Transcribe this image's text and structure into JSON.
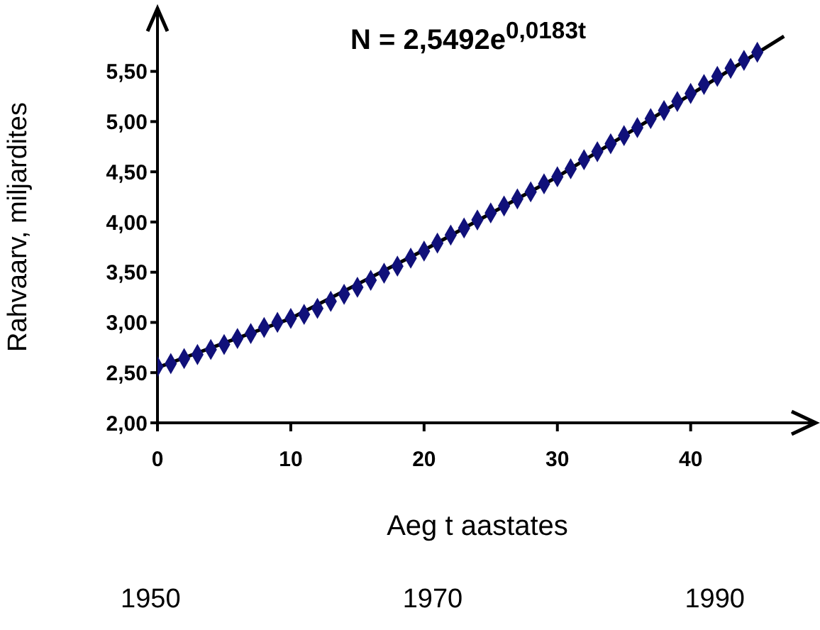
{
  "chart_data": {
    "type": "scatter",
    "title": "N = 2,5492e$^{0,0183t}$",
    "xlabel": "Aeg t aastates",
    "ylabel": "Rahvaarv, miljardites",
    "annotations": [
      "1950",
      "1970",
      "1990"
    ],
    "x": [
      0,
      1,
      2,
      3,
      4,
      5,
      6,
      7,
      8,
      9,
      10,
      11,
      12,
      13,
      14,
      15,
      16,
      17,
      18,
      19,
      20,
      21,
      22,
      23,
      24,
      25,
      26,
      27,
      28,
      29,
      30,
      31,
      32,
      33,
      34,
      35,
      36,
      37,
      38,
      39,
      40,
      41,
      42,
      43,
      44,
      45
    ],
    "series": [
      {
        "color": "#10107a",
        "marker": "diamond",
        "values": [
          2.56,
          2.59,
          2.64,
          2.68,
          2.73,
          2.78,
          2.84,
          2.89,
          2.95,
          3.0,
          3.04,
          3.08,
          3.14,
          3.21,
          3.28,
          3.35,
          3.42,
          3.49,
          3.56,
          3.64,
          3.71,
          3.79,
          3.87,
          3.94,
          4.02,
          4.09,
          4.16,
          4.23,
          4.3,
          4.38,
          4.45,
          4.53,
          4.62,
          4.7,
          4.78,
          4.86,
          4.94,
          5.03,
          5.11,
          5.2,
          5.28,
          5.37,
          5.45,
          5.53,
          5.61,
          5.69
        ]
      },
      {
        "type": "line",
        "color": "#000000",
        "marker": "none",
        "x": [
          0,
          10,
          20,
          30,
          40,
          47
        ],
        "values": [
          2.55,
          3.04,
          3.72,
          4.45,
          5.27,
          5.85
        ]
      }
    ],
    "xlim": [
      0,
      48
    ],
    "xticks": [
      0,
      10,
      20,
      30,
      40
    ],
    "ylim": [
      2,
      5.9
    ],
    "yticks": [
      {
        "value": 2,
        "label": "2,00"
      },
      {
        "value": 2.5,
        "label": "2,50"
      },
      {
        "value": 3,
        "label": "3,00"
      },
      {
        "value": 3.5,
        "label": "3,50"
      },
      {
        "value": 4,
        "label": "4,00"
      },
      {
        "value": 4.5,
        "label": "4,50"
      },
      {
        "value": 5,
        "label": "5,00"
      },
      {
        "value": 5.5,
        "label": "5,50"
      }
    ],
    "grid": false
  }
}
